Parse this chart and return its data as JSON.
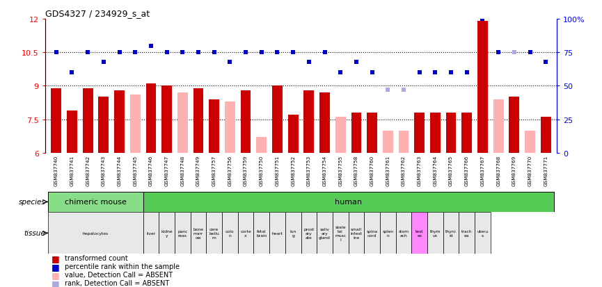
{
  "title": "GDS4327 / 234929_s_at",
  "samples": [
    "GSM837740",
    "GSM837741",
    "GSM837742",
    "GSM837743",
    "GSM837744",
    "GSM837745",
    "GSM837746",
    "GSM837747",
    "GSM837748",
    "GSM837749",
    "GSM837757",
    "GSM837756",
    "GSM837759",
    "GSM837750",
    "GSM837751",
    "GSM837752",
    "GSM837753",
    "GSM837754",
    "GSM837755",
    "GSM837758",
    "GSM837760",
    "GSM837761",
    "GSM837762",
    "GSM837763",
    "GSM837764",
    "GSM837765",
    "GSM837766",
    "GSM837767",
    "GSM837768",
    "GSM837769",
    "GSM837770",
    "GSM837771"
  ],
  "bar_values": [
    8.9,
    7.9,
    8.9,
    8.5,
    8.8,
    8.6,
    9.1,
    9.0,
    8.7,
    8.9,
    8.4,
    8.3,
    8.8,
    6.7,
    9.0,
    7.7,
    8.8,
    8.7,
    7.6,
    7.8,
    7.8,
    7.0,
    7.0,
    7.8,
    7.8,
    7.8,
    7.8,
    11.9,
    8.4,
    8.5,
    7.0,
    7.6
  ],
  "bar_absent": [
    false,
    false,
    false,
    false,
    false,
    true,
    false,
    false,
    true,
    false,
    false,
    true,
    false,
    true,
    false,
    false,
    false,
    false,
    true,
    false,
    false,
    true,
    true,
    false,
    false,
    false,
    false,
    false,
    true,
    false,
    true,
    false
  ],
  "rank_pct": [
    75,
    60,
    75,
    68,
    75,
    75,
    80,
    75,
    75,
    75,
    75,
    68,
    75,
    75,
    75,
    75,
    68,
    75,
    60,
    68,
    60,
    47,
    47,
    60,
    60,
    60,
    60,
    100,
    75,
    75,
    75,
    68
  ],
  "rank_absent": [
    false,
    false,
    false,
    false,
    false,
    false,
    false,
    false,
    false,
    false,
    false,
    false,
    false,
    false,
    false,
    false,
    false,
    false,
    false,
    false,
    false,
    true,
    true,
    false,
    false,
    false,
    false,
    false,
    false,
    true,
    false,
    false
  ],
  "ylim_left": [
    6,
    12
  ],
  "ylim_right": [
    0,
    100
  ],
  "yticks_left": [
    6,
    7.5,
    9,
    10.5,
    12
  ],
  "yticks_right": [
    0,
    25,
    50,
    75,
    100
  ],
  "hlines": [
    7.5,
    9.0,
    10.5
  ],
  "bar_color": "#CC0000",
  "bar_absent_color": "#FFB0B0",
  "rank_color": "#0000CC",
  "rank_absent_color": "#AAAADD",
  "species_groups": [
    {
      "label": "chimeric mouse",
      "start": 0,
      "end": 6,
      "color": "#88DD88"
    },
    {
      "label": "human",
      "start": 6,
      "end": 32,
      "color": "#55CC55"
    }
  ],
  "tissue_labels": [
    {
      "label": "hepatocytes",
      "start": 0,
      "end": 6,
      "color": "#E8E8E8"
    },
    {
      "label": "liver",
      "start": 6,
      "end": 7,
      "color": "#E8E8E8"
    },
    {
      "label": "kidne\ny",
      "start": 7,
      "end": 8,
      "color": "#E8E8E8"
    },
    {
      "label": "panc\nreas",
      "start": 8,
      "end": 9,
      "color": "#E8E8E8"
    },
    {
      "label": "bone\nmarr\now",
      "start": 9,
      "end": 10,
      "color": "#E8E8E8"
    },
    {
      "label": "cere\nbellu\nm",
      "start": 10,
      "end": 11,
      "color": "#E8E8E8"
    },
    {
      "label": "colo\nn",
      "start": 11,
      "end": 12,
      "color": "#E8E8E8"
    },
    {
      "label": "corte\nx",
      "start": 12,
      "end": 13,
      "color": "#E8E8E8"
    },
    {
      "label": "fetal\nbrain",
      "start": 13,
      "end": 14,
      "color": "#E8E8E8"
    },
    {
      "label": "heart",
      "start": 14,
      "end": 15,
      "color": "#E8E8E8"
    },
    {
      "label": "lun\ng",
      "start": 15,
      "end": 16,
      "color": "#E8E8E8"
    },
    {
      "label": "prost\nary\nate",
      "start": 16,
      "end": 17,
      "color": "#E8E8E8"
    },
    {
      "label": "saliv\nary\ngland",
      "start": 17,
      "end": 18,
      "color": "#E8E8E8"
    },
    {
      "label": "skele\ntal\nmusc\nl",
      "start": 18,
      "end": 19,
      "color": "#E8E8E8"
    },
    {
      "label": "small\nintest\nine",
      "start": 19,
      "end": 20,
      "color": "#E8E8E8"
    },
    {
      "label": "spina\ncord",
      "start": 20,
      "end": 21,
      "color": "#E8E8E8"
    },
    {
      "label": "splen\nn",
      "start": 21,
      "end": 22,
      "color": "#E8E8E8"
    },
    {
      "label": "stom\nach",
      "start": 22,
      "end": 23,
      "color": "#E8E8E8"
    },
    {
      "label": "test\nes",
      "start": 23,
      "end": 24,
      "color": "#FF88FF"
    },
    {
      "label": "thym\nus",
      "start": 24,
      "end": 25,
      "color": "#E8E8E8"
    },
    {
      "label": "thyro\nid",
      "start": 25,
      "end": 26,
      "color": "#E8E8E8"
    },
    {
      "label": "trach\nea",
      "start": 26,
      "end": 27,
      "color": "#E8E8E8"
    },
    {
      "label": "uteru\ns",
      "start": 27,
      "end": 28,
      "color": "#E8E8E8"
    }
  ]
}
